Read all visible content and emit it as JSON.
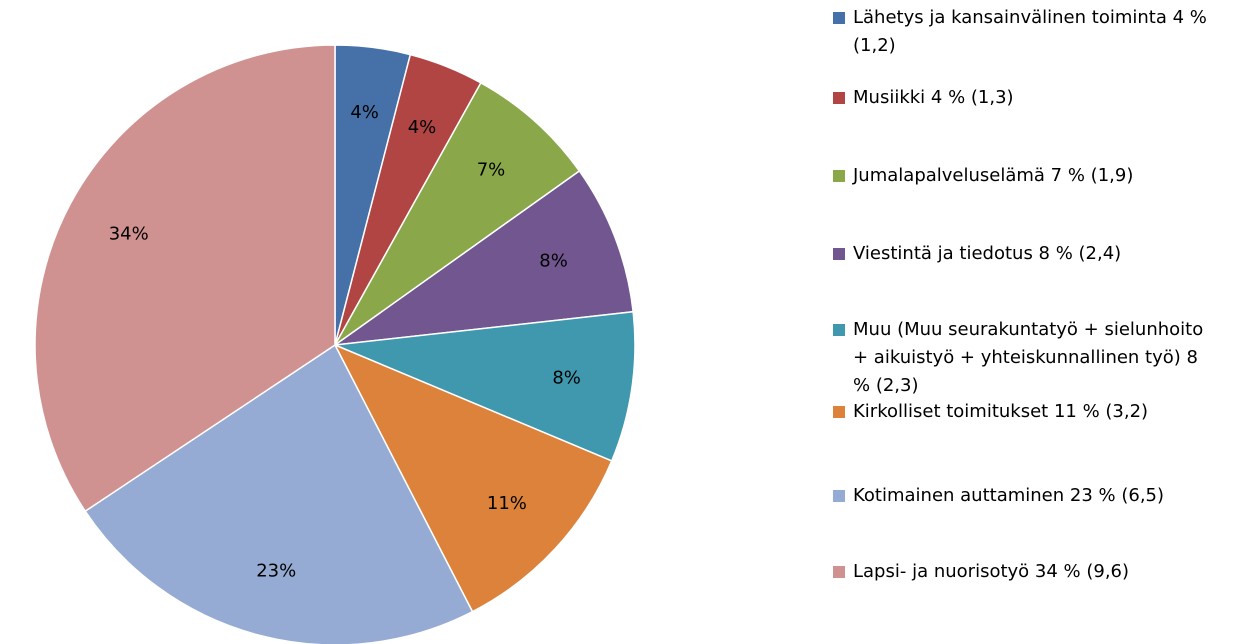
{
  "chart_data": {
    "type": "pie",
    "series": [
      {
        "name": "Lähetys ja kansainvälinen toiminta 4 % (1,2)",
        "color": "#4670a8"
      },
      {
        "name": "Musiikki 4 % (1,3)",
        "color": "#b04543"
      },
      {
        "name": "Jumalapalveluselämä 7 % (1,9)",
        "color": "#8aa84a"
      },
      {
        "name": "Viestintä ja tiedotus 8 % (2,4)",
        "color": "#71568f"
      },
      {
        "name": "Muu (Muu seurakuntatyö + sielunhoito + aikuistyö + yhteiskunnallinen työ) 8 % (2,3)",
        "color": "#3f98ae"
      },
      {
        "name": "Kirkolliset toimitukset 11 % (3,2)",
        "color": "#dc823a"
      },
      {
        "name": "Kotimainen auttaminen 23 % (6,5)",
        "color": "#95abd3"
      },
      {
        "name": "Lapsi- ja nuorisotyö 34 % (9,6)",
        "color": "#d09291"
      }
    ],
    "values": [
      4,
      4,
      7,
      8,
      8,
      11,
      23,
      34
    ],
    "value_labels": [
      "4%",
      "4%",
      "7%",
      "8%",
      "8%",
      "11%",
      "23%",
      "34%"
    ],
    "legend": "right"
  }
}
